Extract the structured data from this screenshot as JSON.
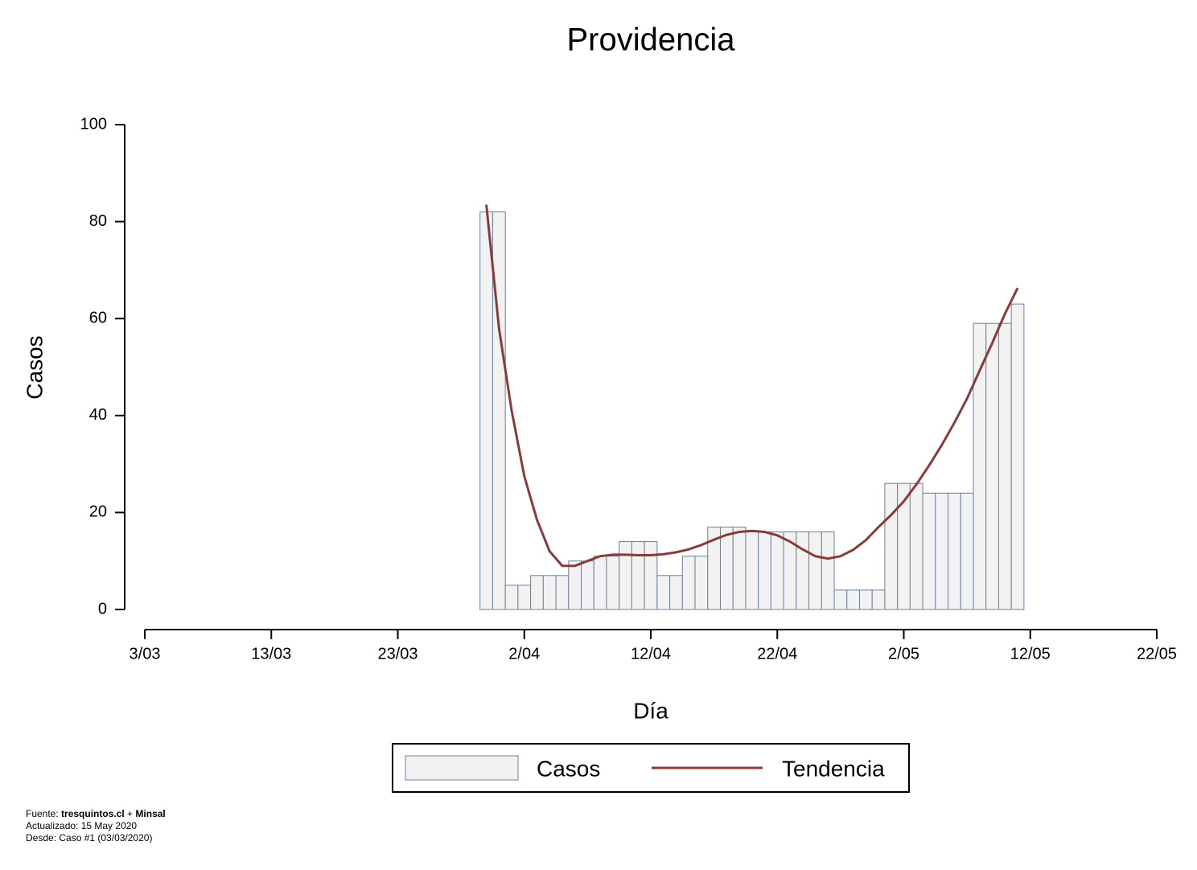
{
  "chart_data": {
    "type": "bar",
    "title": "Providencia",
    "xlabel": "Día",
    "ylabel": "Casos",
    "x": [
      "30/03",
      "31/03",
      "1/04",
      "2/04",
      "3/04",
      "4/04",
      "5/04",
      "6/04",
      "7/04",
      "8/04",
      "9/04",
      "10/04",
      "11/04",
      "12/04",
      "13/04",
      "14/04",
      "15/04",
      "16/04",
      "17/04",
      "18/04",
      "19/04",
      "20/04",
      "21/04",
      "22/04",
      "23/04",
      "24/04",
      "25/04",
      "26/04",
      "27/04",
      "28/04",
      "29/04",
      "30/04",
      "1/05",
      "2/05",
      "3/05",
      "4/05",
      "5/05",
      "6/05",
      "7/05",
      "8/05",
      "9/05",
      "10/05",
      "11/05"
    ],
    "series": [
      {
        "name": "Casos",
        "type": "bar",
        "color": "#f2f2f2",
        "edgecolor": "#6b7fa0",
        "values": [
          82,
          82,
          5,
          5,
          7,
          7,
          7,
          10,
          10,
          11,
          11,
          14,
          14,
          14,
          7,
          7,
          11,
          11,
          17,
          17,
          17,
          16,
          16,
          16,
          16,
          16,
          16,
          16,
          4,
          4,
          4,
          4,
          26,
          26,
          26,
          24,
          24,
          24,
          24,
          59,
          59,
          59,
          63
        ]
      },
      {
        "name": "Tendencia",
        "type": "line",
        "color": "#8b3a3a",
        "values": [
          83.5,
          58,
          41,
          27.5,
          18.5,
          12,
          9,
          9,
          10,
          11,
          11.3,
          11.3,
          11.2,
          11.2,
          11.4,
          11.8,
          12.4,
          13.3,
          14.4,
          15.4,
          16,
          16.2,
          16,
          15.3,
          14,
          12.4,
          11,
          10.5,
          11,
          12.3,
          14.3,
          17,
          19.5,
          22.3,
          25.8,
          29.7,
          33.9,
          38.5,
          43.5,
          49.3,
          55,
          61,
          66.3
        ]
      }
    ],
    "xlim": [
      "3/03",
      "22/05"
    ],
    "xticks": [
      "3/03",
      "13/03",
      "23/03",
      "2/04",
      "12/04",
      "22/04",
      "2/05",
      "12/05",
      "22/05"
    ],
    "ylim": [
      0,
      100
    ],
    "yticks": [
      0,
      20,
      40,
      60,
      80,
      100
    ],
    "grid": false,
    "legend": "bottom"
  },
  "footer": {
    "source": [
      "Fuente: ",
      "tresquintos.cl",
      " + ",
      "Minsal"
    ],
    "lines": [
      "Actualizado: 15 May 2020",
      "Desde: Caso #1  (03/03/2020)"
    ]
  }
}
